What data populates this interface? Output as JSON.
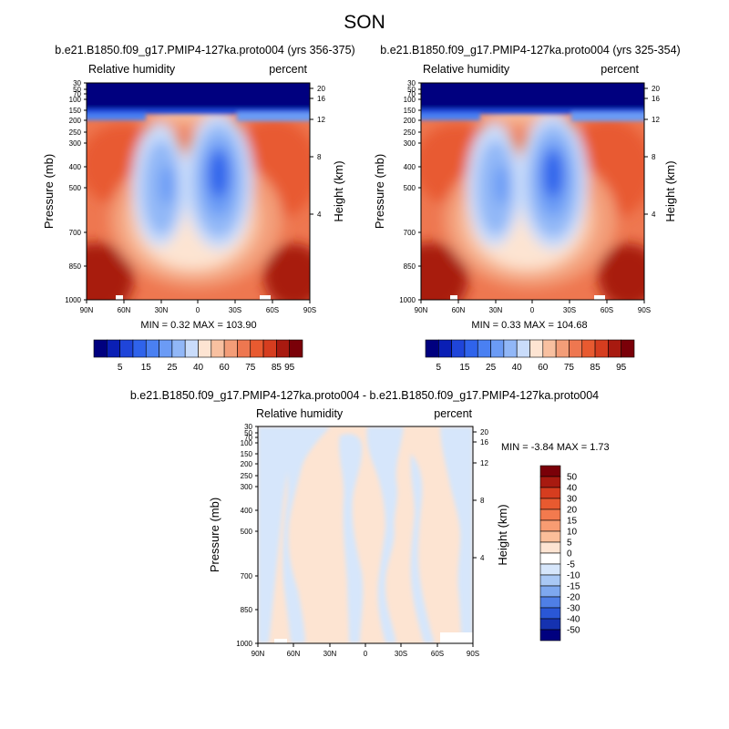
{
  "figure": {
    "title": "SON"
  },
  "panels": [
    {
      "title": "b.e21.B1850.f09_g17.PMIP4-127ka.proto004 (yrs 356-375)",
      "left_label": "Relative humidity",
      "right_label": "percent",
      "y_label_left": "Pressure (mb)",
      "y_label_right": "Height (km)",
      "stats": "MIN =   0.32   MAX = 103.90"
    },
    {
      "title": "b.e21.B1850.f09_g17.PMIP4-127ka.proto004 (yrs 325-354)",
      "left_label": "Relative humidity",
      "right_label": "percent",
      "y_label_left": "Pressure (mb)",
      "y_label_right": "Height (km)",
      "stats": "MIN =   0.33   MAX = 104.68"
    },
    {
      "title": "b.e21.B1850.f09_g17.PMIP4-127ka.proto004 - b.e21.B1850.f09_g17.PMIP4-127ka.proto004",
      "left_label": "Relative humidity",
      "right_label": "percent",
      "y_label_left": "Pressure (mb)",
      "y_label_right": "Height (km)",
      "stats": "MIN =  -3.84   MAX =   1.73"
    }
  ],
  "chart_data": [
    {
      "type": "heatmap",
      "title": "b.e21.B1850.f09_g17.PMIP4-127ka.proto004 (yrs 356-375)",
      "field": "Relative humidity",
      "units": "percent",
      "x_ticks": [
        "90N",
        "60N",
        "30N",
        "0",
        "30S",
        "60S",
        "90S"
      ],
      "x_values": [
        90,
        60,
        30,
        0,
        -30,
        -60,
        -90
      ],
      "y_ticks_left": [
        "30",
        "50",
        "70",
        "100",
        "150",
        "200",
        "250",
        "300",
        "400",
        "500",
        "700",
        "850",
        "1000"
      ],
      "y_ticks_right": [
        "20",
        "16",
        "12",
        "8",
        "4"
      ],
      "ylim": [
        1000,
        30
      ],
      "log_pressure_axis": true,
      "min": 0.32,
      "max": 103.9,
      "colorbar_levels": [
        5,
        10,
        15,
        20,
        25,
        30,
        40,
        50,
        60,
        70,
        75,
        80,
        85,
        90,
        95
      ],
      "colorbar_labels": [
        "5",
        "15",
        "25",
        "40",
        "60",
        "75",
        "85",
        "95"
      ],
      "colorbar_orientation": "horizontal"
    },
    {
      "type": "heatmap",
      "title": "b.e21.B1850.f09_g17.PMIP4-127ka.proto004 (yrs 325-354)",
      "field": "Relative humidity",
      "units": "percent",
      "x_ticks": [
        "90N",
        "60N",
        "30N",
        "0",
        "30S",
        "60S",
        "90S"
      ],
      "x_values": [
        90,
        60,
        30,
        0,
        -30,
        -60,
        -90
      ],
      "y_ticks_left": [
        "30",
        "50",
        "70",
        "100",
        "150",
        "200",
        "250",
        "300",
        "400",
        "500",
        "700",
        "850",
        "1000"
      ],
      "y_ticks_right": [
        "20",
        "16",
        "12",
        "8",
        "4"
      ],
      "ylim": [
        1000,
        30
      ],
      "log_pressure_axis": true,
      "min": 0.33,
      "max": 104.68,
      "colorbar_levels": [
        5,
        10,
        15,
        20,
        25,
        30,
        40,
        50,
        60,
        70,
        75,
        80,
        85,
        90,
        95
      ],
      "colorbar_labels": [
        "5",
        "15",
        "25",
        "40",
        "60",
        "75",
        "85",
        "95"
      ],
      "colorbar_orientation": "horizontal"
    },
    {
      "type": "heatmap",
      "title": "b.e21.B1850.f09_g17.PMIP4-127ka.proto004 - b.e21.B1850.f09_g17.PMIP4-127ka.proto004",
      "field": "Relative humidity",
      "units": "percent",
      "x_ticks": [
        "90N",
        "60N",
        "30N",
        "0",
        "30S",
        "60S",
        "90S"
      ],
      "x_values": [
        90,
        60,
        30,
        0,
        -30,
        -60,
        -90
      ],
      "y_ticks_left": [
        "30",
        "50",
        "70",
        "100",
        "150",
        "200",
        "250",
        "300",
        "400",
        "500",
        "700",
        "850",
        "1000"
      ],
      "y_ticks_right": [
        "20",
        "16",
        "12",
        "8",
        "4"
      ],
      "ylim": [
        1000,
        30
      ],
      "log_pressure_axis": true,
      "min": -3.84,
      "max": 1.73,
      "colorbar_levels": [
        -50,
        -40,
        -30,
        -20,
        -15,
        -10,
        -5,
        0,
        5,
        10,
        15,
        20,
        30,
        40,
        50
      ],
      "colorbar_labels": [
        "50",
        "40",
        "30",
        "20",
        "15",
        "10",
        "5",
        "0",
        "-5",
        "-10",
        "-15",
        "-20",
        "-30",
        "-40",
        "-50"
      ],
      "colorbar_orientation": "vertical"
    }
  ],
  "colors": {
    "seq_palette": [
      "#00007f",
      "#0a1fb5",
      "#1f45d9",
      "#2f63eb",
      "#4a80f2",
      "#6b9bf5",
      "#91b7f7",
      "#c9dcfa",
      "#fde4d2",
      "#f8c0a0",
      "#f39d78",
      "#ee7750",
      "#e85a30",
      "#d63d1f",
      "#a81a10",
      "#7a0008"
    ],
    "diff_palette": [
      "#7a0008",
      "#a81a10",
      "#d63d1f",
      "#e85a30",
      "#f37a4e",
      "#f89c72",
      "#fbbe99",
      "#fde4d2",
      "#ffffff",
      "#d6e6fb",
      "#a9c8f5",
      "#7ea8ef",
      "#4f7fe6",
      "#2a57d6",
      "#1532b0",
      "#00007f"
    ],
    "diff_positive": "#fde4d2",
    "diff_negative": "#d6e6fb"
  }
}
